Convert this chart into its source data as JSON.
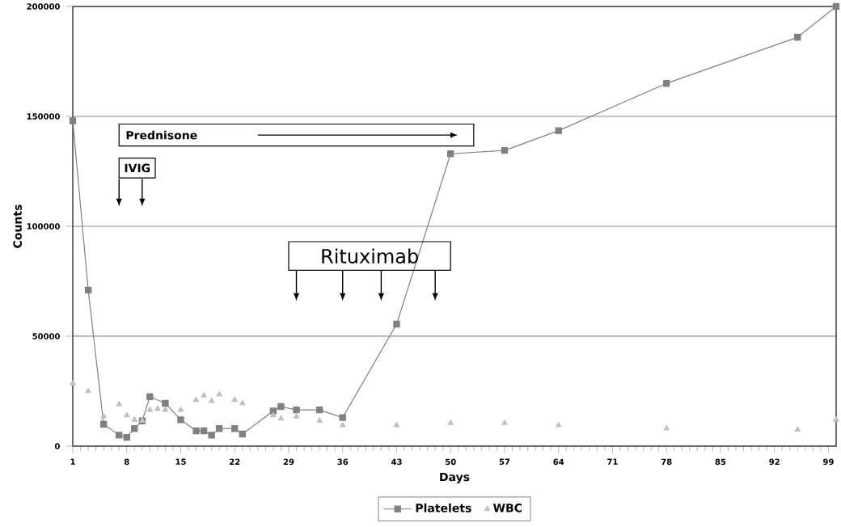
{
  "chart_data": {
    "type": "line",
    "xlabel": "Days",
    "ylabel": "Counts",
    "xlim": [
      1,
      100
    ],
    "xticks": [
      1,
      8,
      15,
      22,
      29,
      36,
      43,
      50,
      57,
      64,
      71,
      78,
      85,
      92,
      99
    ],
    "ylim": [
      0,
      200000
    ],
    "yticks": [
      0,
      50000,
      100000,
      150000,
      200000
    ],
    "grid": "y",
    "legend": "bottom",
    "series": [
      {
        "name": "Platelets",
        "marker": "square",
        "color": "#808080",
        "x": [
          1,
          3,
          5,
          7,
          8,
          9,
          10,
          11,
          13,
          15,
          17,
          18,
          19,
          20,
          22,
          23,
          27,
          28,
          30,
          33,
          36,
          43,
          50,
          57,
          64,
          78,
          95,
          100
        ],
        "values": [
          148000,
          71000,
          10000,
          5000,
          4000,
          8000,
          11500,
          22500,
          19500,
          12000,
          7000,
          7000,
          5000,
          8000,
          8000,
          5500,
          16000,
          18000,
          16500,
          16500,
          13000,
          55500,
          133000,
          134500,
          143500,
          165000,
          186000,
          200000
        ]
      },
      {
        "name": "WBC",
        "type": "scatter",
        "marker": "triangle",
        "color": "#c0c0c0",
        "x": [
          1,
          3,
          5,
          7,
          8,
          9,
          10,
          11,
          12,
          13,
          15,
          17,
          18,
          19,
          20,
          22,
          23,
          27,
          28,
          30,
          33,
          36,
          43,
          50,
          57,
          64,
          78,
          95,
          100
        ],
        "values": [
          28500,
          25000,
          13500,
          19000,
          14000,
          12000,
          11500,
          16500,
          17000,
          16500,
          16500,
          21000,
          23000,
          20500,
          23500,
          21000,
          19500,
          14000,
          12500,
          13500,
          11500,
          9500,
          9500,
          10500,
          10500,
          9500,
          8000,
          7500,
          12000
        ]
      }
    ],
    "annotations": [
      "Prednisone",
      "IVIG",
      "Rituximab"
    ]
  }
}
